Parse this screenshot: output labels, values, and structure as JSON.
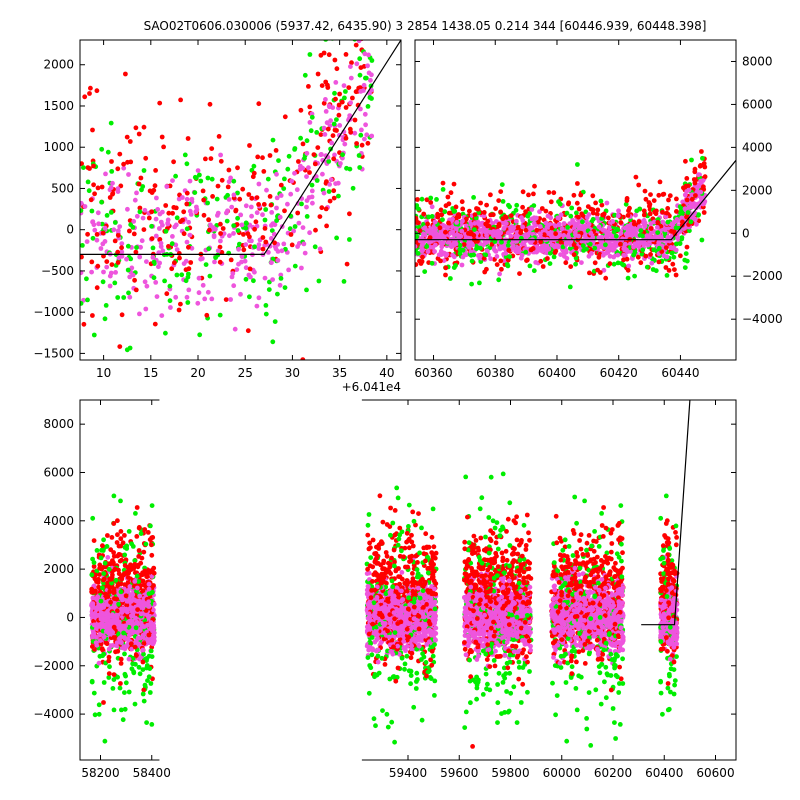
{
  "title": "SAO02T0606.030006 (5937.42, 6435.90)    3 2854 1438.05 0.214 344 [60446.939, 60448.398]",
  "colors": {
    "red": "#ff0000",
    "green": "#00ee00",
    "magenta": "#ee55dd",
    "fit": "#000000"
  },
  "chart_data": [
    {
      "panel": "top-left",
      "type": "scatter",
      "xlim": [
        7.5,
        41.5
      ],
      "ylim": [
        -1580,
        2300
      ],
      "xticks": [
        10,
        15,
        20,
        25,
        30,
        35,
        40
      ],
      "yticks": [
        -1500,
        -1000,
        -500,
        0,
        500,
        1000,
        1500,
        2000
      ],
      "offset_label": "+6.041e4",
      "y_axis_side": "left",
      "fit_line": {
        "x": [
          7.5,
          27.0,
          41.5
        ],
        "y": [
          -300,
          -300,
          2300
        ]
      },
      "series": [
        {
          "color": "red",
          "values_description_omitted": true
        },
        {
          "color": "green"
        },
        {
          "color": "magenta"
        }
      ]
    },
    {
      "panel": "top-right",
      "type": "scatter",
      "xlim": [
        60354,
        60458
      ],
      "ylim": [
        -5900,
        9000
      ],
      "xticks": [
        60360,
        60380,
        60400,
        60420,
        60440
      ],
      "yticks": [
        -4000,
        -2000,
        0,
        2000,
        4000,
        6000,
        8000
      ],
      "y_axis_side": "right",
      "fit_line": {
        "x": [
          60354,
          60437,
          60458
        ],
        "y": [
          -300,
          -300,
          3400
        ]
      },
      "series": [
        {
          "color": "red"
        },
        {
          "color": "green"
        },
        {
          "color": "magenta"
        }
      ]
    },
    {
      "panel": "bottom",
      "type": "scatter",
      "xlim": [
        58120,
        60680
      ],
      "ylim": [
        -5900,
        9000
      ],
      "xticks": [
        58200,
        58400,
        59400,
        59600,
        59800,
        60000,
        60200,
        60400,
        60600
      ],
      "yticks": [
        -4000,
        -2000,
        0,
        2000,
        4000,
        6000,
        8000
      ],
      "y_axis_side": "left",
      "broken_axis_between": [
        58430,
        59220
      ],
      "fit_line": {
        "x": [
          60310,
          60440,
          60500
        ],
        "y": [
          -300,
          -300,
          9000
        ]
      },
      "seasons": [
        {
          "x": [
            58165,
            58410
          ]
        },
        {
          "x": [
            59240,
            59510
          ]
        },
        {
          "x": [
            59620,
            59880
          ]
        },
        {
          "x": [
            59960,
            60240
          ]
        },
        {
          "x": [
            60385,
            60450
          ]
        }
      ]
    }
  ]
}
